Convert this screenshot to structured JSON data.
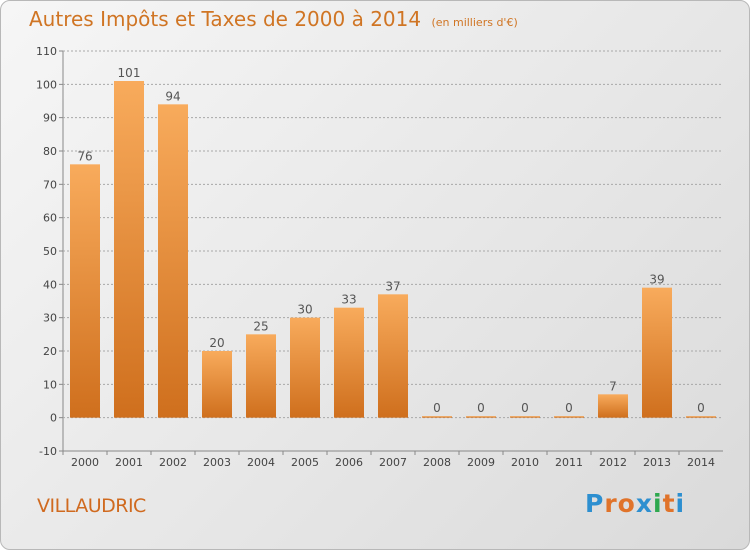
{
  "header": {
    "title": "Autres Impôts et Taxes de 2000 à 2014",
    "unit": "(en milliers d'€)"
  },
  "footer": {
    "commune": "VILLAUDRIC",
    "logo_letters": [
      "P",
      "r",
      "o",
      "x",
      "i",
      "t",
      "i"
    ],
    "logo_colors": [
      "#2d8fd0",
      "#e0732a",
      "#e0732a",
      "#2d8fd0",
      "#2fa84f",
      "#e0732a",
      "#2d8fd0"
    ]
  },
  "colors": {
    "bar_light": "#f8ab5c",
    "bar_dark": "#cf6f1d",
    "grid": "#a8a8a8",
    "text": "#555555"
  },
  "chart_data": {
    "type": "bar",
    "title": "Autres Impôts et Taxes de 2000 à 2014",
    "categories": [
      "2000",
      "2001",
      "2002",
      "2003",
      "2004",
      "2005",
      "2006",
      "2007",
      "2008",
      "2009",
      "2010",
      "2011",
      "2012",
      "2013",
      "2014"
    ],
    "values": [
      76,
      101,
      94,
      20,
      25,
      30,
      33,
      37,
      0,
      0,
      0,
      0,
      7,
      39,
      0
    ],
    "ylim": [
      -10,
      110
    ],
    "yticks": [
      -10,
      0,
      10,
      20,
      30,
      40,
      50,
      60,
      70,
      80,
      90,
      100,
      110
    ],
    "grid": true,
    "xlabel": "",
    "ylabel": ""
  }
}
